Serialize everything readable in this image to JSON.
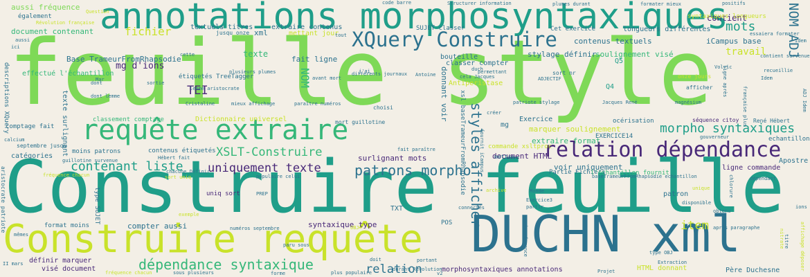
{
  "cloud": {
    "words": [
      {
        "text": "feuille style",
        "color": "#7ed957"
      },
      {
        "text": "Construire feuille",
        "color": "#1f9e89"
      },
      {
        "text": "annotations morphosyntaxiques",
        "color": "#1f9e89"
      },
      {
        "text": "Construire requête",
        "color": "#c9e22a"
      },
      {
        "text": "DUCHN xml",
        "color": "#2c728e"
      },
      {
        "text": "requête extraire",
        "color": "#35b779"
      },
      {
        "text": "XQuery Construire",
        "color": "#2c728e"
      },
      {
        "text": "relation dépendance",
        "color": "#482878"
      },
      {
        "text": "patrons morpho",
        "color": "#2c728e"
      },
      {
        "text": "morpho syntaxiques",
        "color": "#1f9e89"
      },
      {
        "text": "dépendance syntaxique",
        "color": "#35b779"
      },
      {
        "text": "uniquement texte",
        "color": "#482878"
      },
      {
        "text": "contenant liste",
        "color": "#1f9e89"
      },
      {
        "text": "XSLT-Construire",
        "color": "#35b779"
      },
      {
        "text": "styles afficher",
        "color": "#2c728e"
      },
      {
        "text": "relation",
        "color": "#2c728e"
      },
      {
        "text": "mots",
        "color": "#1f9e89"
      },
      {
        "text": "NOM ADJ",
        "color": "#2c728e"
      },
      {
        "text": "fichier",
        "color": "#c9e22a"
      },
      {
        "text": "item",
        "color": "#c9e22a"
      },
      {
        "text": "TEI",
        "color": "#482878"
      },
      {
        "text": "travail",
        "color": "#c9e22a"
      },
      {
        "text": "contient",
        "color": "#482878"
      },
      {
        "text": "texte",
        "color": "#35b779"
      },
      {
        "text": "mg d'ions",
        "color": "#482878"
      },
      {
        "text": "NOM",
        "color": "#35b779"
      },
      {
        "text": "aussi fréquence",
        "color": "#7ed957"
      },
      {
        "text": "document contenant",
        "color": "#35b779"
      },
      {
        "text": "effectué l'échantillon",
        "color": "#35b779"
      },
      {
        "text": "Base TrameurFromRhapsodie",
        "color": "#2c728e"
      },
      {
        "text": "classer compter",
        "color": "#2c728e"
      },
      {
        "text": "stylage définir",
        "color": "#2c728e"
      },
      {
        "text": "soulignement visé",
        "color": "#35b779"
      },
      {
        "text": "contenus textuels",
        "color": "#2c728e"
      },
      {
        "text": "iCampus base",
        "color": "#2c728e"
      },
      {
        "text": "longueurs différentes",
        "color": "#2c728e"
      },
      {
        "text": "syntaxiques longueurs",
        "color": "#c9e22a"
      },
      {
        "text": "extraire format",
        "color": "#35b779"
      },
      {
        "text": "marquer soulignement",
        "color": "#c9e22a"
      },
      {
        "text": "document HTML",
        "color": "#482878"
      },
      {
        "text": "voir uniquement",
        "color": "#2c728e"
      },
      {
        "text": "surlignant mots",
        "color": "#482878"
      },
      {
        "text": "syntaxique type",
        "color": "#482878"
      },
      {
        "text": "format moins",
        "color": "#2c728e"
      },
      {
        "text": "compter aussi",
        "color": "#2c728e"
      },
      {
        "text": "définir marquer",
        "color": "#482878"
      },
      {
        "text": "visé document",
        "color": "#482878"
      },
      {
        "text": "morphosyntaxiques annotations",
        "color": "#482878"
      },
      {
        "text": "HTML donnant",
        "color": "#c9e22a"
      },
      {
        "text": "Père Duchesne",
        "color": "#2c728e"
      },
      {
        "text": "TXT",
        "color": "#2c728e"
      },
      {
        "text": "catégories",
        "color": "#2c728e"
      },
      {
        "text": "moins patrons",
        "color": "#2c728e"
      },
      {
        "text": "comptage fait",
        "color": "#2c728e"
      },
      {
        "text": "descriptions XQuery",
        "color": "#2c728e"
      },
      {
        "text": "texte surlignant",
        "color": "#2c728e"
      },
      {
        "text": "classement comptage",
        "color": "#35b779"
      },
      {
        "text": "uniq sort",
        "color": "#482878"
      },
      {
        "text": "Partie Fichiers",
        "color": "#2c728e"
      },
      {
        "text": "l'échantillon fournit",
        "color": "#35b779"
      },
      {
        "text": "ligne commande",
        "color": "#482878"
      },
      {
        "text": "patron",
        "color": "#2c728e"
      },
      {
        "text": "Apostre",
        "color": "#2c728e"
      },
      {
        "text": "Exercice",
        "color": "#2c728e"
      },
      {
        "text": "EXERCICE14",
        "color": "#2c728e"
      },
      {
        "text": "mg",
        "color": "#2c728e"
      },
      {
        "text": "Q4",
        "color": "#1f9e89"
      },
      {
        "text": "Q5",
        "color": "#1f9e89"
      },
      {
        "text": "fait ligne",
        "color": "#2c728e"
      },
      {
        "text": "xml",
        "color": "#2c728e"
      },
      {
        "text": "extraire contenus",
        "color": "#2c728e"
      },
      {
        "text": "textuels titres",
        "color": "#2c728e"
      },
      {
        "text": "étiquetés TreeTagger",
        "color": "#2c728e"
      },
      {
        "text": "Cet exercice",
        "color": "#2c728e"
      },
      {
        "text": "SUJET classer",
        "color": "#2c728e"
      },
      {
        "text": "également",
        "color": "#2c728e"
      },
      {
        "text": "bouteille",
        "color": "#2c728e"
      },
      {
        "text": "contenus étiquetés",
        "color": "#2c728e"
      },
      {
        "text": "océrisation",
        "color": "#2c728e"
      },
      {
        "text": "séquence citoy",
        "color": "#482878"
      },
      {
        "text": "René Hébert",
        "color": "#2c728e"
      },
      {
        "text": "echantillon xml",
        "color": "#2c728e"
      },
      {
        "text": "commande xsltproc",
        "color": "#c9e22a"
      },
      {
        "text": "donnant voir",
        "color": "#2c728e"
      },
      {
        "text": "xsl baseTrameurFromRhapsodie",
        "color": "#2c728e"
      },
      {
        "text": "POS",
        "color": "#2c728e"
      },
      {
        "text": "choisi",
        "color": "#2c728e"
      },
      {
        "text": "mettre",
        "color": "#2c728e"
      },
      {
        "text": "Antiperistase",
        "color": "#c9e22a"
      },
      {
        "text": "mettant jour",
        "color": "#c9e22a"
      },
      {
        "text": "type SUJET",
        "color": "#2c728e"
      },
      {
        "text": "Dictionnaire universel",
        "color": "#c9e22a"
      },
      {
        "text": "septembre jusqu",
        "color": "#2c728e"
      },
      {
        "text": "mort guillotine",
        "color": "#2c728e"
      },
      {
        "text": "jusqu onze",
        "color": "#2c728e"
      },
      {
        "text": "plumes durant",
        "color": "#2c728e"
      },
      {
        "text": "formater mieux",
        "color": "#2c728e"
      },
      {
        "text": "code barre",
        "color": "#2c728e"
      },
      {
        "text": "Structurer information",
        "color": "#2c728e"
      },
      {
        "text": "positifs",
        "color": "#2c728e"
      },
      {
        "text": "sort nr",
        "color": "#2c728e"
      },
      {
        "text": "onze jours",
        "color": "#c9e22a"
      },
      {
        "text": "afficher",
        "color": "#2c728e"
      },
      {
        "text": "mieux affichage",
        "color": "#2c728e"
      },
      {
        "text": "paraître numéros",
        "color": "#2c728e"
      },
      {
        "text": "populaire celui",
        "color": "#2c728e"
      },
      {
        "text": "numéros septembre",
        "color": "#2c728e"
      },
      {
        "text": "fréquence chacun",
        "color": "#c9e22a"
      },
      {
        "text": "sous plusieurs",
        "color": "#2c728e"
      },
      {
        "text": "paru sous",
        "color": "#2c728e"
      },
      {
        "text": "Volvic",
        "color": "#2c728e"
      },
      {
        "text": "Extraction",
        "color": "#2c728e"
      },
      {
        "text": "ions",
        "color": "#2c728e"
      },
      {
        "text": "nitrate",
        "color": "#c9e22a"
      },
      {
        "text": "obtenu",
        "color": "#2c728e"
      },
      {
        "text": "chlorure",
        "color": "#2c728e"
      },
      {
        "text": "dépendant",
        "color": "#2c728e"
      },
      {
        "text": "disponible",
        "color": "#2c728e"
      },
      {
        "text": "après paragraphe",
        "color": "#2c728e"
      },
      {
        "text": "affichage déposer",
        "color": "#c9e22a"
      },
      {
        "text": "type OBJ",
        "color": "#2c728e"
      },
      {
        "text": "II mars",
        "color": "#2c728e"
      },
      {
        "text": "Projet",
        "color": "#2c728e"
      },
      {
        "text": "portant",
        "color": "#2c728e"
      },
      {
        "text": "forme",
        "color": "#2c728e"
      },
      {
        "text": "plus populaire",
        "color": "#2c728e"
      },
      {
        "text": "fréquence chacun",
        "color": "#c9e22a"
      },
      {
        "text": "sortie",
        "color": "#2c728e"
      },
      {
        "text": "Révolution française",
        "color": "#c9e22a"
      },
      {
        "text": "Question",
        "color": "#c9e22a"
      },
      {
        "text": "ADJ Idem",
        "color": "#2c728e"
      },
      {
        "text": "contient survenue",
        "color": "#2c728e"
      },
      {
        "text": "essaiera formater",
        "color": "#2c728e"
      },
      {
        "text": "plusieurs plumes",
        "color": "#2c728e"
      },
      {
        "text": "avant mort",
        "color": "#2c728e"
      },
      {
        "text": "différents journaux",
        "color": "#2c728e"
      },
      {
        "text": "Cristaline",
        "color": "#2c728e"
      },
      {
        "text": "lemme aristocrate",
        "color": "#2c728e"
      },
      {
        "text": "dont lemme",
        "color": "#2c728e"
      },
      {
        "text": "guillotine survenue",
        "color": "#2c728e"
      },
      {
        "text": "chacune Définir",
        "color": "#2c728e"
      },
      {
        "text": "fait paraître",
        "color": "#2c728e"
      },
      {
        "text": "Hébert fait",
        "color": "#2c728e"
      },
      {
        "text": "sort uniq",
        "color": "#c9e22a"
      },
      {
        "text": "PREP",
        "color": "#2c728e"
      },
      {
        "text": "Jacques René",
        "color": "#2c728e"
      },
      {
        "text": "magnésium",
        "color": "#2c728e"
      },
      {
        "text": "Monde",
        "color": "#2c728e"
      },
      {
        "text": "Exercice3",
        "color": "#2c728e"
      },
      {
        "text": "puis séquence",
        "color": "#2c728e"
      },
      {
        "text": "fournit iCampus",
        "color": "#2c728e"
      },
      {
        "text": "gouverneur",
        "color": "#2c728e"
      },
      {
        "text": "patriote stylage",
        "color": "#2c728e"
      },
      {
        "text": "baseTrameurFromRhapsodie echantillon",
        "color": "#2c728e"
      },
      {
        "text": "aristocrate patriote",
        "color": "#2c728e"
      },
      {
        "text": "calcium",
        "color": "#2c728e"
      },
      {
        "text": "duch",
        "color": "#2c728e"
      },
      {
        "text": "créer",
        "color": "#2c728e"
      },
      {
        "text": "permettant",
        "color": "#2c728e"
      },
      {
        "text": "cela Jacques",
        "color": "#2c728e"
      },
      {
        "text": "Antoine",
        "color": "#2c728e"
      },
      {
        "text": "tout",
        "color": "#2c728e"
      },
      {
        "text": "j'ai",
        "color": "#2c728e"
      },
      {
        "text": "cette",
        "color": "#2c728e"
      },
      {
        "text": "Mar",
        "color": "#2c728e"
      },
      {
        "text": "ADJECTIF",
        "color": "#2c728e"
      },
      {
        "text": "Idem",
        "color": "#2c728e"
      },
      {
        "text": "française plus",
        "color": "#2c728e"
      },
      {
        "text": "recueillie",
        "color": "#2c728e"
      },
      {
        "text": "ligne après",
        "color": "#2c728e"
      },
      {
        "text": "aussi",
        "color": "#2c728e"
      },
      {
        "text": "ici",
        "color": "#2c728e"
      },
      {
        "text": "OBJ",
        "color": "#c9e22a"
      },
      {
        "text": "mêmes",
        "color": "#2c728e"
      },
      {
        "text": "connectés",
        "color": "#2c728e"
      },
      {
        "text": "archive",
        "color": "#c9e22a"
      },
      {
        "text": "partir",
        "color": "#2c728e"
      },
      {
        "text": "exemple",
        "color": "#c9e22a"
      },
      {
        "text": "durant Révolution",
        "color": "#2c728e"
      },
      {
        "text": "doit",
        "color": "#2c728e"
      },
      {
        "text": "titre",
        "color": "#2c728e"
      },
      {
        "text": "v2",
        "color": "#2c728e"
      },
      {
        "text": "dont",
        "color": "#2c728e"
      },
      {
        "text": "unique",
        "color": "#c9e22a"
      },
      {
        "text": "Idem",
        "color": "#2c728e"
      }
    ]
  }
}
